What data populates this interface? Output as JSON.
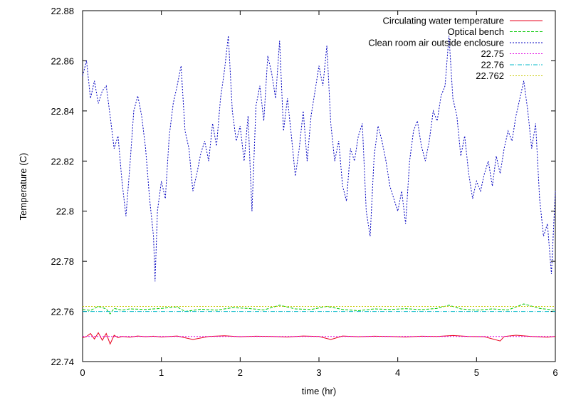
{
  "chart_data": {
    "type": "line",
    "title": "",
    "xlabel": "time (hr)",
    "ylabel": "Temperature (C)",
    "xlim": [
      0,
      6
    ],
    "ylim": [
      22.74,
      22.88
    ],
    "xticks": [
      "0",
      "1",
      "2",
      "3",
      "4",
      "5",
      "6"
    ],
    "yticks": [
      "22.74",
      "22.76",
      "22.78",
      "22.8",
      "22.82",
      "22.84",
      "22.86",
      "22.88"
    ],
    "grid": false,
    "legend_position": "top-right",
    "series": [
      {
        "name": "Circulating water temperature",
        "color": "#e8001c",
        "dash": "solid",
        "x": [
          0,
          0.05,
          0.1,
          0.15,
          0.2,
          0.25,
          0.3,
          0.35,
          0.4,
          0.45,
          0.5,
          0.6,
          0.7,
          0.8,
          0.9,
          1.0,
          1.2,
          1.4,
          1.6,
          1.8,
          2.0,
          2.2,
          2.4,
          2.6,
          2.8,
          3.0,
          3.15,
          3.3,
          3.5,
          3.7,
          3.9,
          4.1,
          4.3,
          4.5,
          4.7,
          4.9,
          5.1,
          5.3,
          5.35,
          5.5,
          5.7,
          5.9,
          6.0
        ],
        "y": [
          22.7495,
          22.75,
          22.7512,
          22.749,
          22.7515,
          22.7485,
          22.7512,
          22.747,
          22.7505,
          22.7495,
          22.75,
          22.7497,
          22.7502,
          22.7499,
          22.7501,
          22.7498,
          22.7502,
          22.7488,
          22.75,
          22.7503,
          22.7499,
          22.7501,
          22.75,
          22.7498,
          22.7502,
          22.75,
          22.7488,
          22.7502,
          22.7499,
          22.7501,
          22.75,
          22.7498,
          22.7501,
          22.75,
          22.7504,
          22.75,
          22.7499,
          22.7482,
          22.75,
          22.7505,
          22.75,
          22.7497,
          22.75
        ]
      },
      {
        "name": "Optical bench",
        "color": "#00c800",
        "dash": "dashed",
        "x": [
          0,
          0.1,
          0.2,
          0.3,
          0.35,
          0.4,
          0.5,
          0.6,
          0.8,
          1.0,
          1.2,
          1.3,
          1.5,
          1.7,
          1.9,
          2.1,
          2.3,
          2.5,
          2.7,
          2.9,
          3.1,
          3.3,
          3.5,
          3.7,
          3.9,
          4.1,
          4.3,
          4.5,
          4.65,
          4.8,
          5.0,
          5.2,
          5.4,
          5.6,
          5.8,
          6.0
        ],
        "y": [
          22.7608,
          22.7604,
          22.762,
          22.761,
          22.759,
          22.7612,
          22.7605,
          22.761,
          22.7608,
          22.7612,
          22.7618,
          22.76,
          22.7609,
          22.7605,
          22.7615,
          22.7612,
          22.7606,
          22.7625,
          22.761,
          22.7608,
          22.762,
          22.7608,
          22.7603,
          22.761,
          22.7608,
          22.7611,
          22.7607,
          22.7612,
          22.7625,
          22.761,
          22.7605,
          22.761,
          22.7606,
          22.763,
          22.7612,
          22.7605
        ]
      },
      {
        "name": "Clean room air outside enclosure",
        "color": "#0000c0",
        "dash": "dotted",
        "x": [
          0,
          0.05,
          0.1,
          0.15,
          0.2,
          0.25,
          0.3,
          0.35,
          0.4,
          0.45,
          0.5,
          0.55,
          0.6,
          0.65,
          0.7,
          0.75,
          0.8,
          0.85,
          0.9,
          0.92,
          0.95,
          1.0,
          1.05,
          1.1,
          1.15,
          1.2,
          1.25,
          1.3,
          1.35,
          1.4,
          1.45,
          1.5,
          1.55,
          1.6,
          1.65,
          1.7,
          1.75,
          1.8,
          1.85,
          1.9,
          1.95,
          2.0,
          2.05,
          2.1,
          2.15,
          2.2,
          2.25,
          2.3,
          2.35,
          2.4,
          2.45,
          2.5,
          2.55,
          2.6,
          2.65,
          2.7,
          2.75,
          2.8,
          2.85,
          2.9,
          2.95,
          3.0,
          3.05,
          3.1,
          3.15,
          3.2,
          3.25,
          3.3,
          3.35,
          3.4,
          3.45,
          3.5,
          3.55,
          3.6,
          3.65,
          3.7,
          3.75,
          3.8,
          3.85,
          3.9,
          3.95,
          4.0,
          4.05,
          4.1,
          4.15,
          4.2,
          4.25,
          4.3,
          4.35,
          4.4,
          4.45,
          4.5,
          4.55,
          4.6,
          4.65,
          4.7,
          4.75,
          4.8,
          4.85,
          4.9,
          4.95,
          5.0,
          5.05,
          5.1,
          5.15,
          5.2,
          5.25,
          5.3,
          5.35,
          5.4,
          5.45,
          5.5,
          5.55,
          5.6,
          5.65,
          5.7,
          5.75,
          5.8,
          5.85,
          5.9,
          5.95,
          6.0
        ],
        "y": [
          22.854,
          22.86,
          22.845,
          22.852,
          22.843,
          22.848,
          22.85,
          22.838,
          22.825,
          22.83,
          22.812,
          22.798,
          22.818,
          22.84,
          22.846,
          22.838,
          22.825,
          22.805,
          22.79,
          22.772,
          22.8,
          22.812,
          22.805,
          22.83,
          22.843,
          22.85,
          22.858,
          22.832,
          22.825,
          22.808,
          22.815,
          22.823,
          22.828,
          22.82,
          22.835,
          22.826,
          22.845,
          22.856,
          22.87,
          22.84,
          22.828,
          22.834,
          22.82,
          22.838,
          22.8,
          22.842,
          22.85,
          22.836,
          22.862,
          22.855,
          22.845,
          22.868,
          22.832,
          22.845,
          22.83,
          22.814,
          22.825,
          22.84,
          22.82,
          22.838,
          22.848,
          22.858,
          22.85,
          22.866,
          22.835,
          22.82,
          22.828,
          22.81,
          22.804,
          22.825,
          22.82,
          22.83,
          22.835,
          22.8,
          22.79,
          22.822,
          22.834,
          22.828,
          22.82,
          22.81,
          22.805,
          22.8,
          22.808,
          22.795,
          22.82,
          22.832,
          22.836,
          22.826,
          22.82,
          22.828,
          22.84,
          22.836,
          22.846,
          22.85,
          22.87,
          22.845,
          22.838,
          22.822,
          22.83,
          22.815,
          22.805,
          22.812,
          22.808,
          22.815,
          22.82,
          22.81,
          22.822,
          22.815,
          22.825,
          22.832,
          22.828,
          22.838,
          22.845,
          22.852,
          22.84,
          22.825,
          22.835,
          22.805,
          22.79,
          22.795,
          22.775,
          22.808
        ]
      },
      {
        "name": "22.75",
        "color": "#e000e0",
        "dash": "dotted",
        "x": [
          0,
          6
        ],
        "y": [
          22.75,
          22.75
        ]
      },
      {
        "name": "22.76",
        "color": "#00b8c8",
        "dash": "dashdot",
        "x": [
          0,
          6
        ],
        "y": [
          22.76,
          22.76
        ]
      },
      {
        "name": "22.762",
        "color": "#c8c800",
        "dash": "dotted",
        "x": [
          0,
          6
        ],
        "y": [
          22.762,
          22.762
        ]
      }
    ]
  }
}
